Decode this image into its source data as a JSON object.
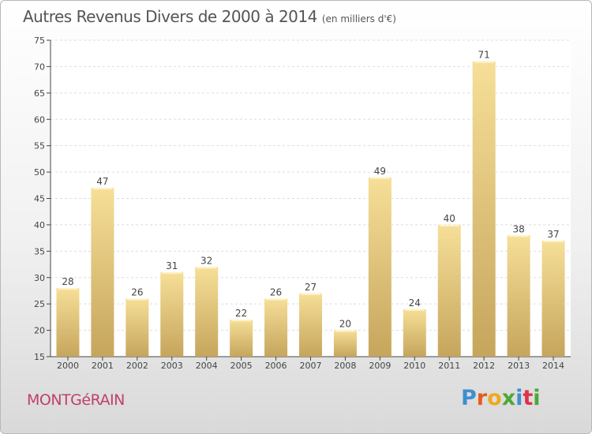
{
  "header": {
    "title": "Autres Revenus Divers de 2000 à 2014",
    "unit": "(en milliers d'€)"
  },
  "footer": {
    "commune": "MONTGéRAIN",
    "logo": [
      "P",
      "r",
      "o",
      "x",
      "i",
      "t",
      "i"
    ]
  },
  "colors": {
    "bar_light": "#f6df98",
    "bar_dark": "#c6a55c",
    "commune": "#c0406a",
    "logo": [
      "#3f8fd0",
      "#e85a1e",
      "#f0a81c",
      "#4aa838",
      "#3f8fd0",
      "#e0324a",
      "#4aa838"
    ]
  },
  "chart_data": {
    "type": "bar",
    "categories": [
      "2000",
      "2001",
      "2002",
      "2003",
      "2004",
      "2005",
      "2006",
      "2007",
      "2008",
      "2009",
      "2010",
      "2011",
      "2012",
      "2013",
      "2014"
    ],
    "values": [
      28,
      47,
      26,
      31,
      32,
      22,
      26,
      27,
      20,
      49,
      24,
      40,
      71,
      38,
      37
    ],
    "ylim": [
      15,
      75
    ],
    "yticks": [
      15,
      20,
      25,
      30,
      35,
      40,
      45,
      50,
      55,
      60,
      65,
      70,
      75
    ],
    "grid": true
  }
}
